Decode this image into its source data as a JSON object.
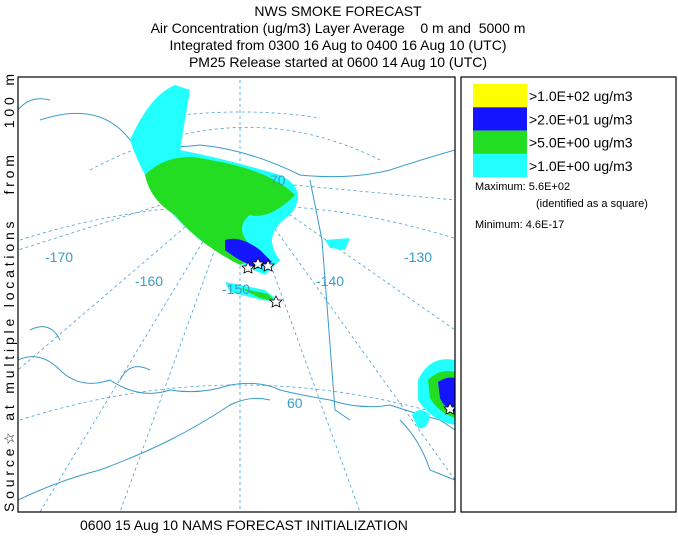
{
  "header": {
    "title": "NWS SMOKE FORECAST",
    "lines": [
      "Air Concentration (ug/m3) Layer Average    0 m and  5000 m",
      "Integrated from 0300 16 Aug to 0400 16 Aug 10 (UTC)",
      "PM25 Release started at 0600 14 Aug 10 (UTC)"
    ]
  },
  "side_label": "Source☆ at multiple locations   from   100 m",
  "footer": "0600 15 Aug 10 NAMS FORECAST INITIALIZATION",
  "legend": {
    "entries": [
      {
        "label": ">1.0E+02 ug/m3",
        "color": "#ffff00"
      },
      {
        "label": ">2.0E+01 ug/m3",
        "color": "#1414ff"
      },
      {
        "label": ">5.0E+00 ug/m3",
        "color": "#22dd22"
      },
      {
        "label": ">1.0E+00 ug/m3",
        "color": "#22ffff"
      }
    ],
    "maximum": "Maximum: 5.6E+02",
    "maximum_note": "(identified as a square)",
    "minimum": "Minimum: 4.6E-17"
  },
  "map": {
    "labels": [
      "-170",
      "-160",
      "-150",
      "-140",
      "-130",
      "70",
      "60"
    ]
  }
}
